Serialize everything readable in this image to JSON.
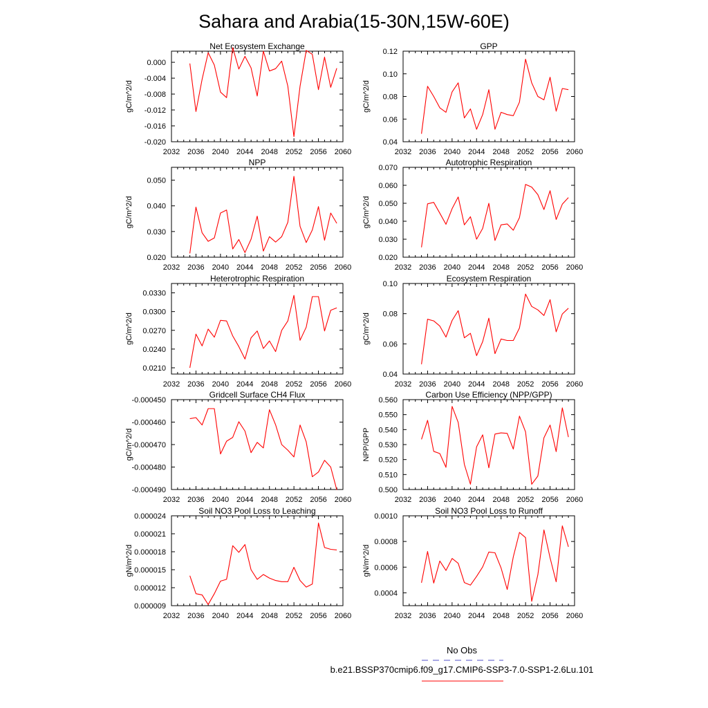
{
  "title": "Sahara and Arabia(15-30N,15W-60E)",
  "colors": {
    "model": "#ff0000",
    "obs": "#5050c8"
  },
  "legend": {
    "obs_label": "No Obs",
    "model_label": "b.e21.BSSP370cmip6.f09_g17.CMIP6-SSP3-7.0-SSP1-2.6Lu.101"
  },
  "chart_data": [
    {
      "type": "line",
      "title": "Net Ecosystem Exchange",
      "ylabel": "gC/m^2/d",
      "xlim": [
        2032,
        2060
      ],
      "ylim": [
        -0.02,
        0.0028
      ],
      "xticks": [
        "2032",
        "2036",
        "2040",
        "2044",
        "2048",
        "2052",
        "2056",
        "2060"
      ],
      "yticks": [
        {
          "v": 0.0,
          "label": "0.000"
        },
        {
          "v": -0.004,
          "label": "-0.004"
        },
        {
          "v": -0.008,
          "label": "-0.008"
        },
        {
          "v": -0.012,
          "label": "-0.012"
        },
        {
          "v": -0.016,
          "label": "-0.016"
        },
        {
          "v": -0.02,
          "label": "-0.020"
        }
      ],
      "x": [
        2035,
        2036,
        2037,
        2038,
        2039,
        2040,
        2041,
        2042,
        2043,
        2044,
        2045,
        2046,
        2047,
        2048,
        2049,
        2050,
        2051,
        2052,
        2053,
        2054,
        2055,
        2056,
        2057,
        2058,
        2059
      ],
      "values": [
        -0.0003,
        -0.0124,
        -0.0043,
        0.0024,
        -0.0007,
        -0.0075,
        -0.0089,
        0.0037,
        -0.0017,
        0.0015,
        -0.0014,
        -0.0085,
        0.0028,
        -0.0022,
        -0.0016,
        0.0003,
        -0.006,
        -0.0187,
        -0.006,
        0.003,
        0.002,
        -0.0069,
        0.0013,
        -0.0063,
        -0.0015
      ],
      "series_name": ""
    },
    {
      "type": "line",
      "title": "GPP",
      "ylabel": "gC/m^2/d",
      "xlim": [
        2032,
        2060
      ],
      "ylim": [
        0.04,
        0.12
      ],
      "xticks": [
        "2032",
        "2036",
        "2040",
        "2044",
        "2048",
        "2052",
        "2056",
        "2060"
      ],
      "yticks": [
        {
          "v": 0.04,
          "label": "0.04"
        },
        {
          "v": 0.06,
          "label": "0.06"
        },
        {
          "v": 0.08,
          "label": "0.08"
        },
        {
          "v": 0.1,
          "label": "0.10"
        },
        {
          "v": 0.12,
          "label": "0.12"
        }
      ],
      "x": [
        2035,
        2036,
        2037,
        2038,
        2039,
        2040,
        2041,
        2042,
        2043,
        2044,
        2045,
        2046,
        2047,
        2048,
        2049,
        2050,
        2051,
        2052,
        2053,
        2054,
        2055,
        2056,
        2057,
        2058,
        2059
      ],
      "values": [
        0.047,
        0.089,
        0.08,
        0.07,
        0.066,
        0.084,
        0.092,
        0.061,
        0.069,
        0.051,
        0.064,
        0.086,
        0.051,
        0.066,
        0.064,
        0.063,
        0.075,
        0.113,
        0.092,
        0.08,
        0.077,
        0.097,
        0.067,
        0.087,
        0.086
      ],
      "series_name": ""
    },
    {
      "type": "line",
      "title": "NPP",
      "ylabel": "gC/m^2/d",
      "xlim": [
        2032,
        2060
      ],
      "ylim": [
        0.02,
        0.055
      ],
      "xticks": [
        "2032",
        "2036",
        "2040",
        "2044",
        "2048",
        "2052",
        "2056",
        "2060"
      ],
      "yticks": [
        {
          "v": 0.02,
          "label": "0.020"
        },
        {
          "v": 0.03,
          "label": "0.030"
        },
        {
          "v": 0.04,
          "label": "0.040"
        },
        {
          "v": 0.05,
          "label": "0.050"
        }
      ],
      "x": [
        2035,
        2036,
        2037,
        2038,
        2039,
        2040,
        2041,
        2042,
        2043,
        2044,
        2045,
        2046,
        2047,
        2048,
        2049,
        2050,
        2051,
        2052,
        2053,
        2054,
        2055,
        2056,
        2057,
        2058,
        2059
      ],
      "values": [
        0.0215,
        0.0395,
        0.0295,
        0.0262,
        0.0275,
        0.0372,
        0.0384,
        0.0232,
        0.0269,
        0.0218,
        0.027,
        0.036,
        0.0224,
        0.028,
        0.0259,
        0.028,
        0.0336,
        0.0515,
        0.032,
        0.0257,
        0.0306,
        0.0397,
        0.0266,
        0.0372,
        0.0332
      ],
      "series_name": ""
    },
    {
      "type": "line",
      "title": "Autotrophic Respiration",
      "ylabel": "gC/m^2/d",
      "xlim": [
        2032,
        2060
      ],
      "ylim": [
        0.02,
        0.07
      ],
      "xticks": [
        "2032",
        "2036",
        "2040",
        "2044",
        "2048",
        "2052",
        "2056",
        "2060"
      ],
      "yticks": [
        {
          "v": 0.02,
          "label": "0.020"
        },
        {
          "v": 0.03,
          "label": "0.030"
        },
        {
          "v": 0.04,
          "label": "0.040"
        },
        {
          "v": 0.05,
          "label": "0.050"
        },
        {
          "v": 0.06,
          "label": "0.060"
        },
        {
          "v": 0.07,
          "label": "0.070"
        }
      ],
      "x": [
        2035,
        2036,
        2037,
        2038,
        2039,
        2040,
        2041,
        2042,
        2043,
        2044,
        2045,
        2046,
        2047,
        2048,
        2049,
        2050,
        2051,
        2052,
        2053,
        2054,
        2055,
        2056,
        2057,
        2058,
        2059
      ],
      "values": [
        0.0255,
        0.0497,
        0.0505,
        0.0445,
        0.0383,
        0.047,
        0.0535,
        0.038,
        0.0425,
        0.03,
        0.036,
        0.05,
        0.0293,
        0.038,
        0.0385,
        0.035,
        0.042,
        0.0605,
        0.059,
        0.0548,
        0.0465,
        0.057,
        0.041,
        0.0495,
        0.0532
      ],
      "series_name": ""
    },
    {
      "type": "line",
      "title": "Heterotrophic Respiration",
      "ylabel": "gC/m^2/d",
      "xlim": [
        2032,
        2060
      ],
      "ylim": [
        0.02,
        0.0345
      ],
      "xticks": [
        "2032",
        "2036",
        "2040",
        "2044",
        "2048",
        "2052",
        "2056",
        "2060"
      ],
      "yticks": [
        {
          "v": 0.021,
          "label": "0.0210"
        },
        {
          "v": 0.024,
          "label": "0.0240"
        },
        {
          "v": 0.027,
          "label": "0.0270"
        },
        {
          "v": 0.03,
          "label": "0.0300"
        },
        {
          "v": 0.033,
          "label": "0.0330"
        }
      ],
      "x": [
        2035,
        2036,
        2037,
        2038,
        2039,
        2040,
        2041,
        2042,
        2043,
        2044,
        2045,
        2046,
        2047,
        2048,
        2049,
        2050,
        2051,
        2052,
        2053,
        2054,
        2055,
        2056,
        2057,
        2058,
        2059
      ],
      "values": [
        0.021,
        0.0264,
        0.0245,
        0.0272,
        0.0259,
        0.0286,
        0.0285,
        0.0261,
        0.0244,
        0.0224,
        0.0258,
        0.0269,
        0.0241,
        0.0253,
        0.0236,
        0.027,
        0.0285,
        0.0326,
        0.0254,
        0.0275,
        0.0324,
        0.0324,
        0.0269,
        0.0302,
        0.0306
      ],
      "series_name": ""
    },
    {
      "type": "line",
      "title": "Ecosystem Respiration",
      "ylabel": "gC/m^2/d",
      "xlim": [
        2032,
        2060
      ],
      "ylim": [
        0.04,
        0.1
      ],
      "xticks": [
        "2032",
        "2036",
        "2040",
        "2044",
        "2048",
        "2052",
        "2056",
        "2060"
      ],
      "yticks": [
        {
          "v": 0.04,
          "label": "0.04"
        },
        {
          "v": 0.06,
          "label": "0.06"
        },
        {
          "v": 0.08,
          "label": "0.08"
        },
        {
          "v": 0.1,
          "label": "0.10"
        }
      ],
      "x": [
        2035,
        2036,
        2037,
        2038,
        2039,
        2040,
        2041,
        2042,
        2043,
        2044,
        2045,
        2046,
        2047,
        2048,
        2049,
        2050,
        2051,
        2052,
        2053,
        2054,
        2055,
        2056,
        2057,
        2058,
        2059
      ],
      "values": [
        0.0465,
        0.0763,
        0.0752,
        0.0718,
        0.0645,
        0.0755,
        0.082,
        0.064,
        0.067,
        0.0522,
        0.0615,
        0.077,
        0.0535,
        0.0632,
        0.0622,
        0.0622,
        0.0705,
        0.093,
        0.0848,
        0.0825,
        0.0788,
        0.0893,
        0.068,
        0.0798,
        0.0836
      ],
      "series_name": ""
    },
    {
      "type": "line",
      "title": "Gridcell Surface CH4 Flux",
      "ylabel": "gC/m^2/d",
      "xlim": [
        2032,
        2060
      ],
      "ylim": [
        -0.00049,
        -0.00045
      ],
      "xticks": [
        "2032",
        "2036",
        "2040",
        "2044",
        "2048",
        "2052",
        "2056",
        "2060"
      ],
      "yticks": [
        {
          "v": -0.00045,
          "label": "-0.000450"
        },
        {
          "v": -0.00046,
          "label": "-0.000460"
        },
        {
          "v": -0.00047,
          "label": "-0.000470"
        },
        {
          "v": -0.00048,
          "label": "-0.000480"
        },
        {
          "v": -0.00049,
          "label": "-0.000490"
        }
      ],
      "x": [
        2035,
        2036,
        2037,
        2038,
        2039,
        2040,
        2041,
        2042,
        2043,
        2044,
        2045,
        2046,
        2047,
        2048,
        2049,
        2050,
        2051,
        2052,
        2053,
        2054,
        2055,
        2056,
        2057,
        2058,
        2059
      ],
      "values": [
        -0.0004585,
        -0.000458,
        -0.0004613,
        -0.000454,
        -0.000454,
        -0.0004742,
        -0.0004685,
        -0.0004668,
        -0.0004598,
        -0.000464,
        -0.0004736,
        -0.000469,
        -0.0004715,
        -0.0004545,
        -0.0004612,
        -0.00047,
        -0.0004725,
        -0.0004755,
        -0.0004613,
        -0.0004688,
        -0.0004843,
        -0.0004822,
        -0.000477,
        -0.00048,
        -0.0004902
      ],
      "series_name": ""
    },
    {
      "type": "line",
      "title": "Carbon Use Efficiency (NPP/GPP)",
      "ylabel": "NPP/GPP",
      "xlim": [
        2032,
        2060
      ],
      "ylim": [
        0.5,
        0.56
      ],
      "xticks": [
        "2032",
        "2036",
        "2040",
        "2044",
        "2048",
        "2052",
        "2056",
        "2060"
      ],
      "yticks": [
        {
          "v": 0.5,
          "label": "0.500"
        },
        {
          "v": 0.51,
          "label": "0.510"
        },
        {
          "v": 0.52,
          "label": "0.520"
        },
        {
          "v": 0.53,
          "label": "0.530"
        },
        {
          "v": 0.54,
          "label": "0.540"
        },
        {
          "v": 0.55,
          "label": "0.550"
        },
        {
          "v": 0.56,
          "label": "0.560"
        }
      ],
      "x": [
        2035,
        2036,
        2037,
        2038,
        2039,
        2040,
        2041,
        2042,
        2043,
        2044,
        2045,
        2046,
        2047,
        2048,
        2049,
        2050,
        2051,
        2052,
        2053,
        2054,
        2055,
        2056,
        2057,
        2058,
        2059
      ],
      "values": [
        0.5335,
        0.5462,
        0.5255,
        0.524,
        0.5148,
        0.5555,
        0.5448,
        0.5168,
        0.5035,
        0.5285,
        0.5365,
        0.5145,
        0.537,
        0.5378,
        0.5375,
        0.527,
        0.549,
        0.5385,
        0.5035,
        0.509,
        0.5345,
        0.543,
        0.5253,
        0.5545,
        0.535
      ],
      "series_name": ""
    },
    {
      "type": "line",
      "title": "Soil NO3 Pool Loss to Leaching",
      "ylabel": "gN/m^2/d",
      "xlim": [
        2032,
        2060
      ],
      "ylim": [
        9e-06,
        2.4e-05
      ],
      "xticks": [
        "2032",
        "2036",
        "2040",
        "2044",
        "2048",
        "2052",
        "2056",
        "2060"
      ],
      "yticks": [
        {
          "v": 9e-06,
          "label": "0.000009"
        },
        {
          "v": 1.2e-05,
          "label": "0.000012"
        },
        {
          "v": 1.5e-05,
          "label": "0.000015"
        },
        {
          "v": 1.8e-05,
          "label": "0.000018"
        },
        {
          "v": 2.1e-05,
          "label": "0.000021"
        },
        {
          "v": 2.4e-05,
          "label": "0.000024"
        }
      ],
      "x": [
        2035,
        2036,
        2037,
        2038,
        2039,
        2040,
        2041,
        2042,
        2043,
        2044,
        2045,
        2046,
        2047,
        2048,
        2049,
        2050,
        2051,
        2052,
        2053,
        2054,
        2055,
        2056,
        2057,
        2058,
        2059
      ],
      "values": [
        1.4e-05,
        1.1e-05,
        1.08e-05,
        9.2e-06,
        1.1e-05,
        1.31e-05,
        1.34e-05,
        1.9e-05,
        1.79e-05,
        1.92e-05,
        1.5e-05,
        1.34e-05,
        1.42e-05,
        1.36e-05,
        1.32e-05,
        1.3e-05,
        1.3e-05,
        1.54e-05,
        1.32e-05,
        1.21e-05,
        1.26e-05,
        2.28e-05,
        1.87e-05,
        1.84e-05,
        1.83e-05
      ],
      "series_name": ""
    },
    {
      "type": "line",
      "title": "Soil NO3 Pool Loss to Runoff",
      "ylabel": "gN/m^2/d",
      "xlim": [
        2032,
        2060
      ],
      "ylim": [
        0.0003,
        0.001
      ],
      "xticks": [
        "2032",
        "2036",
        "2040",
        "2044",
        "2048",
        "2052",
        "2056",
        "2060"
      ],
      "yticks": [
        {
          "v": 0.0004,
          "label": "0.0004"
        },
        {
          "v": 0.0006,
          "label": "0.0006"
        },
        {
          "v": 0.0008,
          "label": "0.0008"
        },
        {
          "v": 0.001,
          "label": "0.0010"
        }
      ],
      "x": [
        2035,
        2036,
        2037,
        2038,
        2039,
        2040,
        2041,
        2042,
        2043,
        2044,
        2045,
        2046,
        2047,
        2048,
        2049,
        2050,
        2051,
        2052,
        2053,
        2054,
        2055,
        2056,
        2057,
        2058,
        2059
      ],
      "values": [
        0.000478,
        0.000722,
        0.000476,
        0.000648,
        0.000574,
        0.000668,
        0.00063,
        0.00048,
        0.00046,
        0.000528,
        0.000602,
        0.000718,
        0.000712,
        0.000594,
        0.000426,
        0.00068,
        0.00087,
        0.00083,
        0.000334,
        0.00054,
        0.00089,
        0.000672,
        0.000486,
        0.000922,
        0.000758
      ],
      "series_name": ""
    }
  ]
}
